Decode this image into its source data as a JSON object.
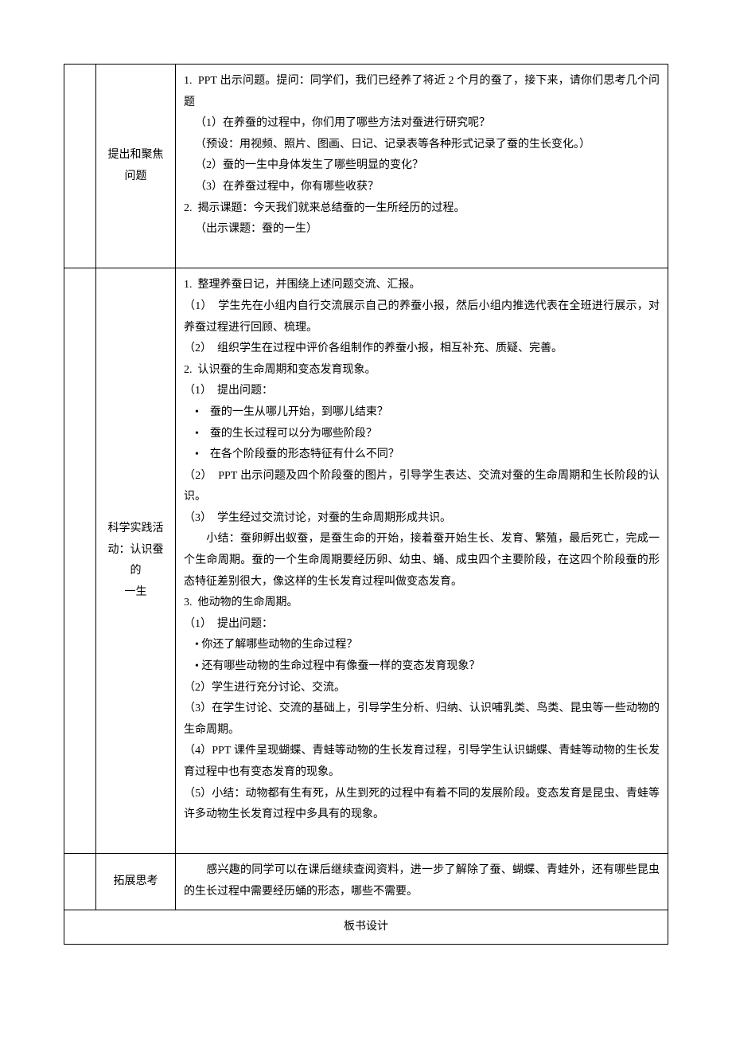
{
  "layout": {
    "col1_width": 40,
    "col2_width": 100,
    "border_color": "#000000",
    "background": "#ffffff",
    "font_family": "SimSun",
    "font_size": 14,
    "line_height": 1.9
  },
  "rows": [
    {
      "label": "提出和聚焦\n问题",
      "content": "1.  PPT 出示问题。提问：同学们，我们已经养了将近 2 个月的蚕了，接下来，请你们思考几个问题\n　（1）在养蚕的过程中，你们用了哪些方法对蚕进行研究呢？\n　（预设：用视频、照片、图画、日记、记录表等各种形式记录了蚕的生长变化。）\n　（2）蚕的一生中身体发生了哪些明显的变化？\n　（3）在养蚕过程中，你有哪些收获？\n2.  揭示课题：今天我们就来总结蚕的一生所经历的过程。\n　（出示课题：蚕的一生）\n"
    },
    {
      "label": "科学实践活\n动：认识蚕的\n一生",
      "content": "1.  整理养蚕日记，并围绕上述问题交流、汇报。\n（1）  学生先在小组内自行交流展示自己的养蚕小报，然后小组内推选代表在全班进行展示，对养蚕过程进行回顾、梳理。\n（2）  组织学生在过程中评价各组制作的养蚕小报，相互补充、质疑、完善。\n2.  认识蚕的生命周期和变态发育现象。\n（1）  提出问题：\n　•　蚕的一生从哪儿开始，到哪儿结束？\n　•　蚕的生长过程可以分为哪些阶段？\n　•　在各个阶段蚕的形态特征有什么不同？\n（2）  PPT 出示问题及四个阶段蚕的图片，引导学生表达、交流对蚕的生命周期和生长阶段的认识。\n（3）  学生经过交流讨论，对蚕的生命周期形成共识。\n　　小结：蚕卵孵出蚁蚕，是蚕生命的开始，接着蚕开始生长、发育、繁殖，最后死亡，完成一个生命周期。蚕的一个生命周期要经历卵、幼虫、蛹、成虫四个主要阶段，在这四个阶段蚕的形态特征差别很大，像这样的生长发育过程叫做变态发育。\n3.  他动物的生命周期。\n（1）  提出问题：\n　• 你还了解哪些动物的生命过程？\n　• 还有哪些动物的生命过程中有像蚕一样的变态发育现象？\n（2）学生进行充分讨论、交流。\n（3）在学生讨论、交流的基础上，引导学生分析、归纳、认识哺乳类、鸟类、昆虫等一些动物的生命周期。\n（4）PPT 课件呈现蝴蝶、青蛙等动物的生长发育过程，引导学生认识蝴蝶、青蛙等动物的生长发育过程中也有变态发育的现象。\n（5）小结：动物都有生有死，从生到死的过程中有着不同的发展阶段。变态发育是昆虫、青蛙等许多动物生长发育过程中多具有的现象。\n"
    },
    {
      "label": "拓展思考",
      "content": "　　感兴趣的同学可以在课后继续查阅资料，进一步了解除了蚕、蝴蝶、青蛙外，还有哪些昆虫的生长过程中需要经历蛹的形态，哪些不需要。"
    }
  ],
  "footer": "板书设计"
}
